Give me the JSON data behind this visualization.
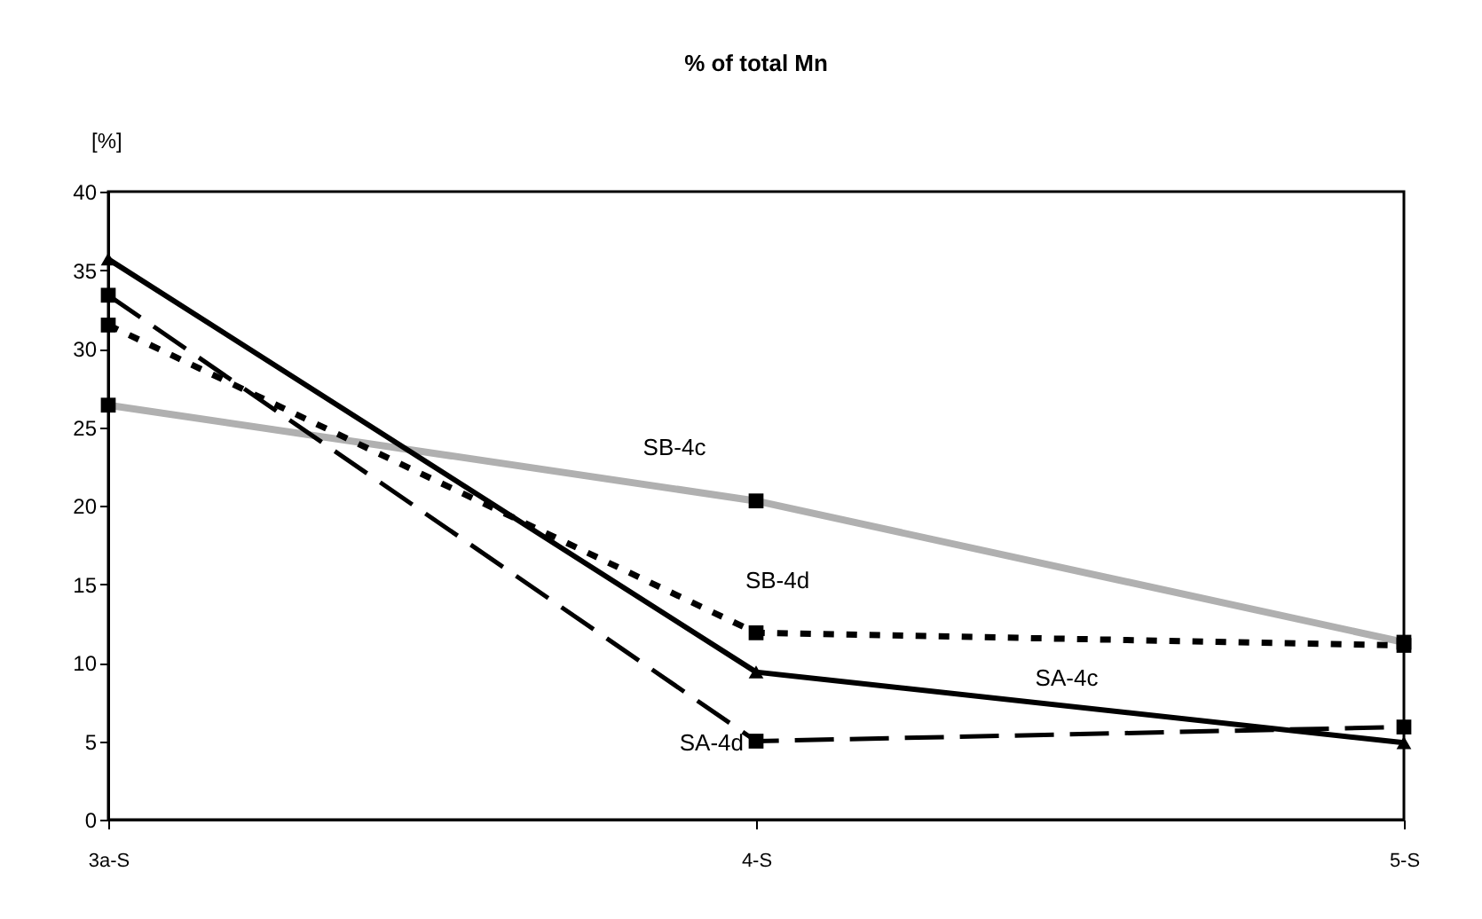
{
  "chart_data": {
    "type": "line",
    "title": "% of total Mn",
    "ylabel": "[%]",
    "categories": [
      "3a-S",
      "4-S",
      "5-S"
    ],
    "series": [
      {
        "name": "SB-4c",
        "color": "#b0b0b0",
        "values": [
          26.4,
          20.3,
          11.3
        ],
        "marker": "square",
        "line_style": "solid"
      },
      {
        "name": "SB-4d",
        "color": "#000000",
        "values": [
          31.5,
          11.9,
          11.1
        ],
        "marker": "square",
        "line_style": "dotted"
      },
      {
        "name": "SA-4c",
        "color": "#000000",
        "values": [
          35.7,
          9.4,
          4.9
        ],
        "marker": "triangle",
        "line_style": "solid"
      },
      {
        "name": "SA-4d",
        "color": "#000000",
        "values": [
          33.4,
          5.0,
          5.9
        ],
        "marker": "square",
        "line_style": "dashed"
      }
    ],
    "ylim": [
      0,
      40
    ],
    "yticks": [
      0,
      5,
      10,
      15,
      20,
      25,
      30,
      35,
      40
    ],
    "grid": false,
    "legend": false
  }
}
